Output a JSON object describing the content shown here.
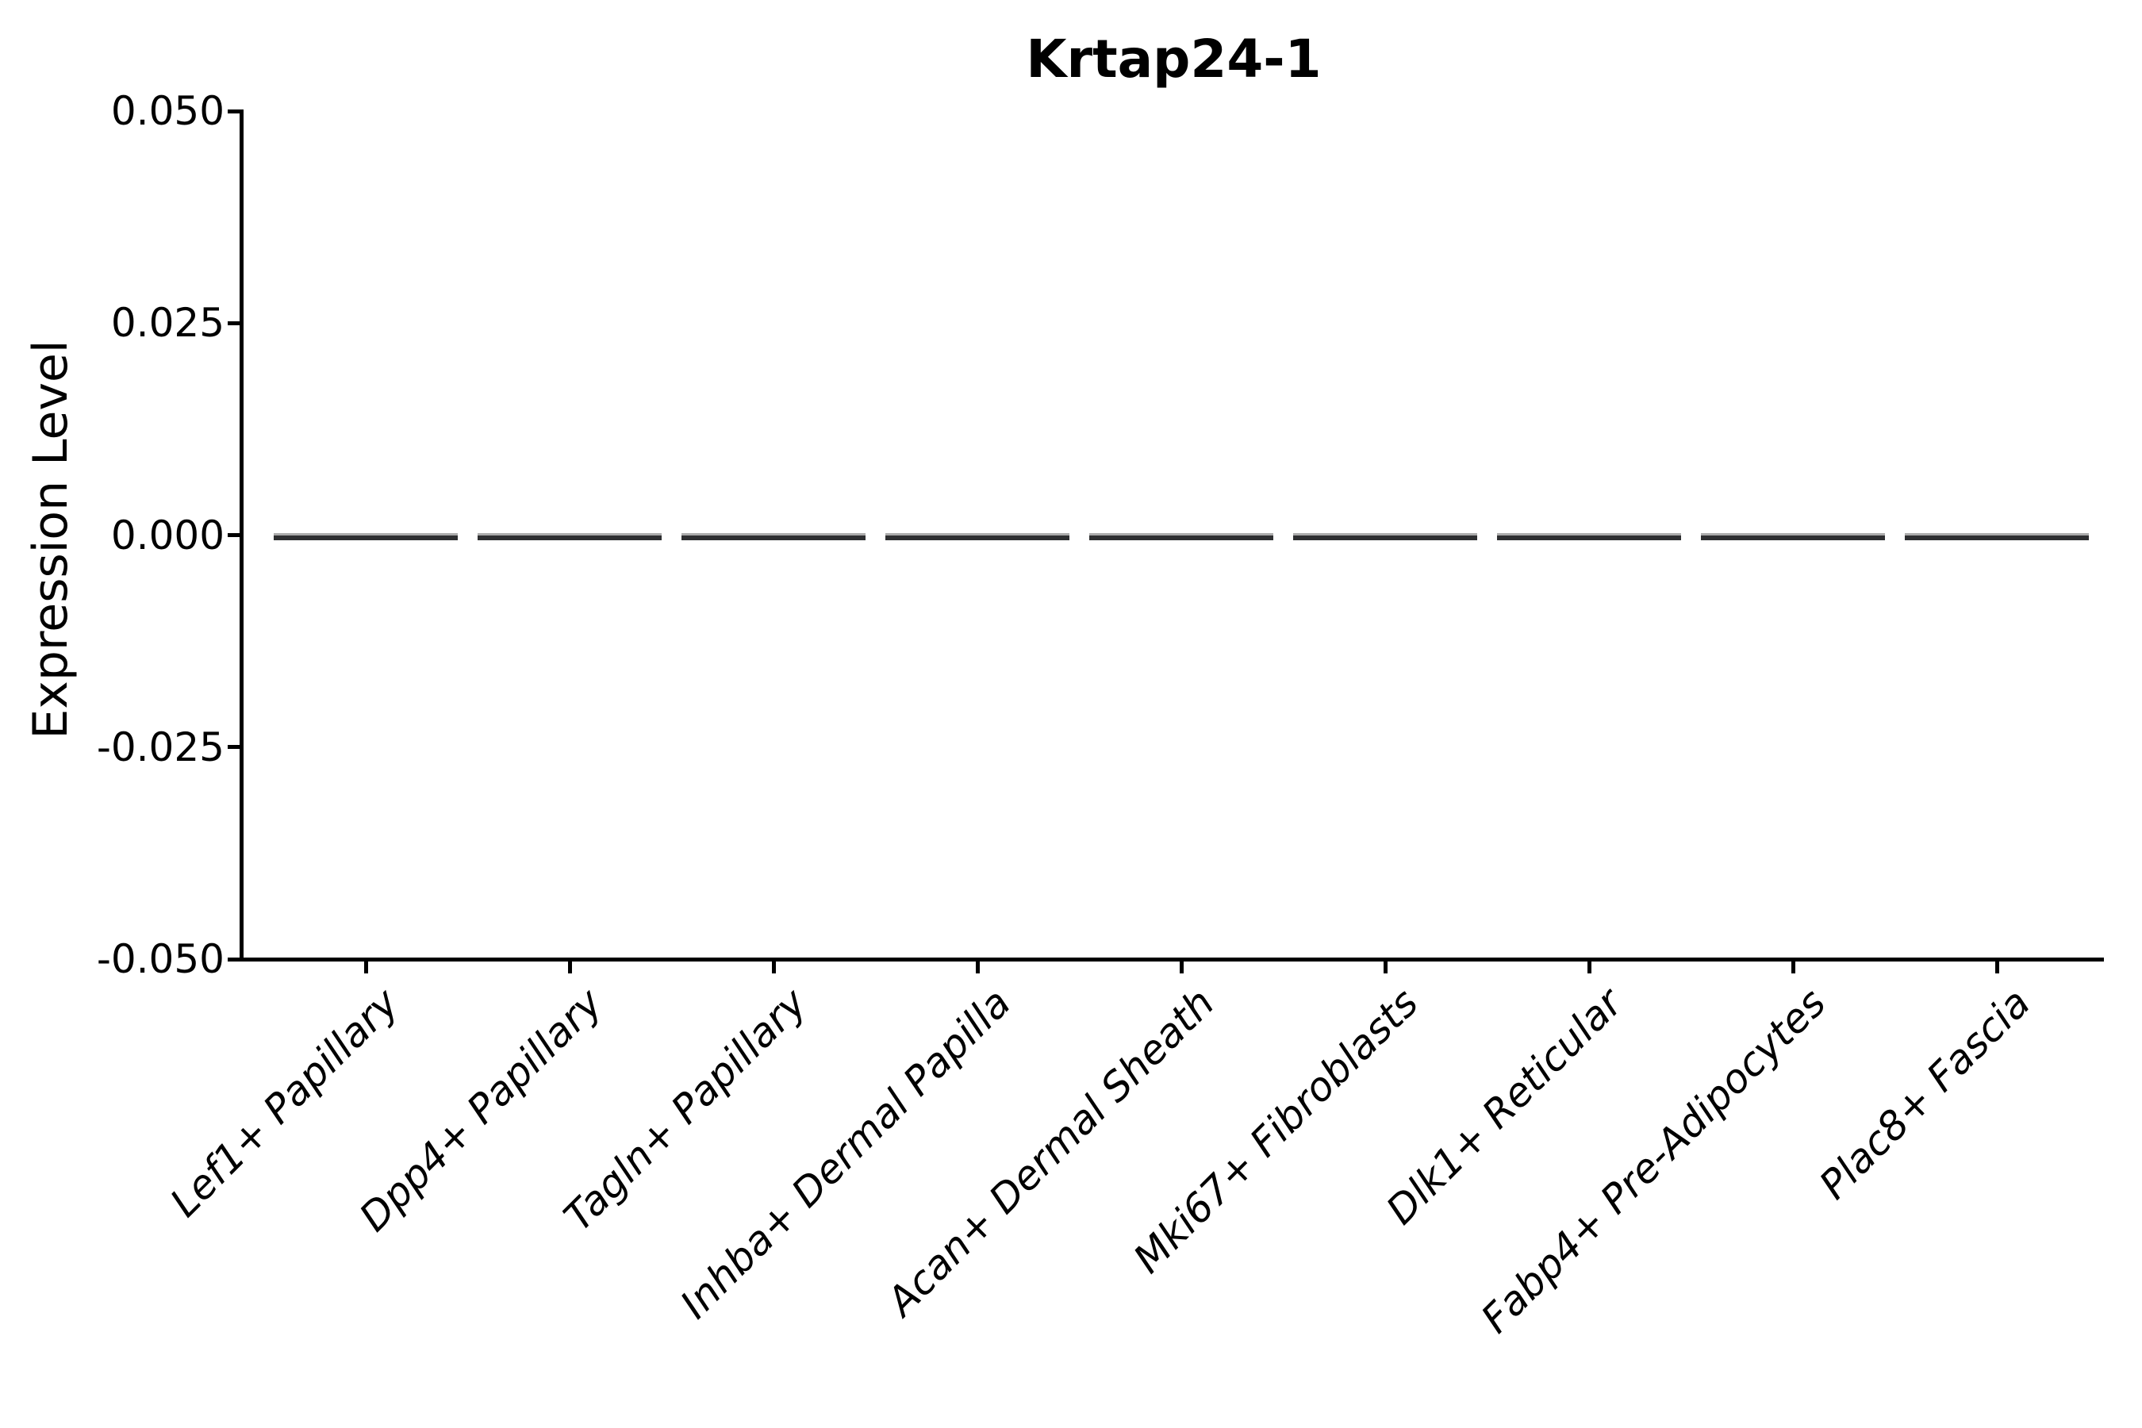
{
  "chart_data": {
    "type": "violin",
    "title": "Krtap24-1",
    "xlabel": "",
    "ylabel": "Expression Level",
    "categories": [
      "Lef1+ Papillary",
      "Dpp4+ Papillary",
      "Tagln+ Papillary",
      "Inhba+ Dermal Papilla",
      "Acan+ Dermal Sheath",
      "Mki67+ Fibroblasts",
      "Dlk1+ Reticular",
      "Fabp4+ Pre-Adipocytes",
      "Plac8+ Fascia"
    ],
    "values": [
      0,
      0,
      0,
      0,
      0,
      0,
      0,
      0,
      0
    ],
    "values_note": "all violins collapsed to flat horizontal lines at y=0",
    "ylim": [
      -0.05,
      0.05
    ],
    "y_ticks": [
      0.05,
      0.025,
      0.0,
      -0.025,
      -0.05
    ],
    "y_tick_labels": [
      "0.050",
      "0.025",
      "0.000",
      "-0.025",
      "-0.050"
    ],
    "grid": false,
    "legend": "none",
    "x_tick_label_rotation_deg": 45,
    "colors": {
      "background": "#ffffff",
      "spine": "#000000",
      "text": "#000000",
      "violin_line_dark": "#2e2f31",
      "violin_line_light": "#ababab"
    }
  }
}
